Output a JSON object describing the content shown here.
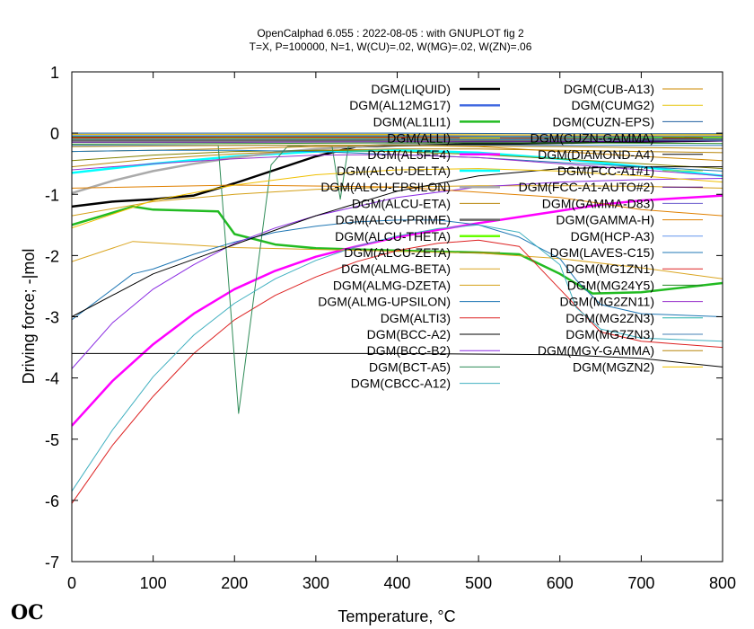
{
  "chart_data": {
    "type": "line",
    "title": "OpenCalphad   6.055 :  2022-08-05 : with GNUPLOT fig 2",
    "subtitle": "T=X,  P=100000, N=1, W(CU)=.02, W(MG)=.02, W(ZN)=.06",
    "xlabel": "Temperature, °C",
    "ylabel": "Driving force; -|mol",
    "xlim": [
      0,
      800
    ],
    "ylim": [
      -7,
      1
    ],
    "xticks": [
      "0",
      "100",
      "200",
      "300",
      "400",
      "500",
      "600",
      "700",
      "800"
    ],
    "yticks": [
      "1",
      "0",
      "-1",
      "-2",
      "-3",
      "-4",
      "-5",
      "-6",
      "-7"
    ],
    "grid": false,
    "legend_position": "top-right, two columns",
    "series": [
      {
        "name": "DGM(LIQUID)",
        "color": "#000000",
        "width": 2.5,
        "x": [
          0,
          50,
          100,
          150,
          200,
          250,
          300,
          350,
          400,
          450,
          500,
          550,
          600,
          650,
          700,
          750,
          800
        ],
        "y": [
          -1.2,
          -1.12,
          -1.08,
          -1.02,
          -0.82,
          -0.6,
          -0.38,
          -0.22,
          -0.2,
          -0.19,
          -0.18,
          -0.17,
          -0.16,
          -0.15,
          -0.14,
          -0.13,
          -0.12
        ]
      },
      {
        "name": "DGM(AL12MG17)",
        "color": "#4169e1",
        "width": 2.5,
        "x": [
          0,
          200,
          400,
          600,
          800
        ],
        "y": [
          -0.1,
          -0.09,
          -0.08,
          -0.08,
          -0.07
        ]
      },
      {
        "name": "DGM(AL1LI1)",
        "color": "#22bb22",
        "width": 2.5,
        "x": [
          0,
          75,
          100,
          180,
          200,
          250,
          300,
          400,
          500,
          550,
          600,
          640,
          700,
          800
        ],
        "y": [
          -1.5,
          -1.2,
          -1.25,
          -1.28,
          -1.65,
          -1.82,
          -1.88,
          -1.92,
          -1.95,
          -1.98,
          -2.3,
          -2.62,
          -2.6,
          -2.45
        ]
      },
      {
        "name": "DGM(ALLI)",
        "color": "#ffd700",
        "width": 1,
        "x": [
          0,
          200,
          400,
          600,
          800
        ],
        "y": [
          -0.05,
          -0.04,
          -0.03,
          -0.03,
          -0.02
        ]
      },
      {
        "name": "DGM(AL5FE4)",
        "color": "#ff00ff",
        "width": 2.5,
        "x": [
          0,
          50,
          100,
          150,
          200,
          250,
          300,
          350,
          400,
          450,
          500,
          550,
          600,
          650,
          700,
          800
        ],
        "y": [
          -4.78,
          -4.05,
          -3.45,
          -2.95,
          -2.55,
          -2.25,
          -2.02,
          -1.85,
          -1.7,
          -1.58,
          -1.47,
          -1.37,
          -1.27,
          -1.17,
          -1.1,
          -1.02
        ]
      },
      {
        "name": "DGM(ALCU-DELTA)",
        "color": "#00ffff",
        "width": 2.5,
        "x": [
          0,
          100,
          200,
          300,
          400,
          500,
          600,
          700,
          800
        ],
        "y": [
          -0.65,
          -0.5,
          -0.38,
          -0.3,
          -0.28,
          -0.32,
          -0.42,
          -0.55,
          -0.7
        ]
      },
      {
        "name": "DGM(ALCU-EPSILON)",
        "color": "#aaaaaa",
        "width": 2.5,
        "x": [
          0,
          50,
          100,
          150,
          200,
          250,
          300,
          400,
          500,
          600,
          700,
          800
        ],
        "y": [
          -0.98,
          -0.78,
          -0.62,
          -0.5,
          -0.4,
          -0.32,
          -0.26,
          -0.18,
          -0.14,
          -0.12,
          -0.1,
          -0.1
        ]
      },
      {
        "name": "DGM(ALCU-ETA)",
        "color": "#b8860b",
        "width": 1,
        "x": [
          0,
          100,
          200,
          300,
          400,
          500,
          600,
          700,
          800
        ],
        "y": [
          -0.55,
          -0.42,
          -0.34,
          -0.28,
          -0.26,
          -0.26,
          -0.28,
          -0.3,
          -0.32
        ]
      },
      {
        "name": "DGM(ALCU-PRIME)",
        "color": "#666666",
        "width": 2.5,
        "x": [
          0,
          200,
          400,
          600,
          800
        ],
        "y": [
          -0.12,
          -0.12,
          -0.11,
          -0.11,
          -0.1
        ]
      },
      {
        "name": "DGM(ALCU-THETA)",
        "color": "#66ff00",
        "width": 2.5,
        "x": [
          0,
          200,
          400,
          600,
          800
        ],
        "y": [
          -0.08,
          -0.08,
          -0.07,
          -0.07,
          -0.06
        ]
      },
      {
        "name": "DGM(ALCU-ZETA)",
        "color": "#808000",
        "width": 1,
        "x": [
          0,
          100,
          200,
          300,
          400,
          500,
          600,
          700,
          800
        ],
        "y": [
          -0.45,
          -0.36,
          -0.3,
          -0.28,
          -0.3,
          -0.35,
          -0.42,
          -0.5,
          -0.58
        ]
      },
      {
        "name": "DGM(ALMG-BETA)",
        "color": "#daa520",
        "width": 1,
        "x": [
          0,
          75,
          200,
          300,
          400,
          500,
          600,
          700,
          800
        ],
        "y": [
          -2.1,
          -1.77,
          -1.87,
          -1.9,
          -1.93,
          -1.96,
          -2.05,
          -2.2,
          -2.38
        ]
      },
      {
        "name": "DGM(ALMG-DZETA)",
        "color": "#d4a017",
        "width": 1,
        "x": [
          0,
          100,
          200,
          300,
          400,
          500,
          600,
          700,
          800
        ],
        "y": [
          -1.35,
          -1.12,
          -1.0,
          -0.92,
          -0.88,
          -0.86,
          -0.86,
          -0.87,
          -0.9
        ]
      },
      {
        "name": "DGM(ALMG-UPSILON)",
        "color": "#1f77b4",
        "width": 1,
        "x": [
          0,
          75,
          100,
          150,
          200,
          250,
          300,
          350,
          400,
          450,
          500,
          550,
          600,
          620,
          650,
          700,
          800
        ],
        "y": [
          -3.05,
          -2.3,
          -2.22,
          -1.98,
          -1.78,
          -1.62,
          -1.52,
          -1.45,
          -1.42,
          -1.42,
          -1.5,
          -1.7,
          -2.05,
          -2.4,
          -2.8,
          -2.95,
          -3.0
        ]
      },
      {
        "name": "DGM(ALTI3)",
        "color": "#dd2222",
        "width": 1,
        "x": [
          0,
          50,
          100,
          150,
          200,
          250,
          300,
          350,
          400,
          450,
          500,
          550,
          600,
          650,
          700,
          750,
          800
        ],
        "y": [
          -6.05,
          -5.1,
          -4.3,
          -3.6,
          -3.05,
          -2.65,
          -2.35,
          -2.1,
          -1.92,
          -1.8,
          -1.75,
          -1.85,
          -2.55,
          -3.25,
          -3.4,
          -3.45,
          -3.5
        ]
      },
      {
        "name": "DGM(BCC-A2)",
        "color": "#000000",
        "width": 1,
        "x": [
          0,
          200,
          400,
          600,
          700,
          800
        ],
        "y": [
          -3.6,
          -3.6,
          -3.6,
          -3.62,
          -3.68,
          -3.82
        ]
      },
      {
        "name": "DGM(BCC-B2)",
        "color": "#8a2be2",
        "width": 1,
        "x": [
          0,
          50,
          100,
          150,
          200,
          250,
          300,
          400,
          500,
          600,
          700,
          800
        ],
        "y": [
          -3.85,
          -3.1,
          -2.55,
          -2.15,
          -1.8,
          -1.55,
          -1.35,
          -1.05,
          -0.88,
          -0.8,
          -0.76,
          -0.74
        ]
      },
      {
        "name": "DGM(BCT-A5)",
        "color": "#2e8b57",
        "width": 1,
        "x": [
          0,
          180,
          205,
          245,
          265,
          300,
          320,
          330,
          340,
          360,
          400,
          500,
          600,
          700,
          800
        ],
        "y": [
          -0.2,
          -0.2,
          -4.58,
          -0.52,
          -0.22,
          -0.2,
          -0.22,
          -1.08,
          -0.22,
          -0.2,
          -0.2,
          -0.2,
          -0.2,
          -0.2,
          -0.2
        ]
      },
      {
        "name": "DGM(CBCC-A12)",
        "color": "#40b0c0",
        "width": 1,
        "x": [
          0,
          50,
          100,
          150,
          200,
          250,
          300,
          350,
          400,
          450,
          500,
          550,
          600,
          620,
          650,
          700,
          800
        ],
        "y": [
          -5.85,
          -4.85,
          -3.98,
          -3.3,
          -2.78,
          -2.38,
          -2.08,
          -1.85,
          -1.68,
          -1.56,
          -1.5,
          -1.62,
          -2.15,
          -2.85,
          -3.2,
          -3.35,
          -3.4
        ]
      },
      {
        "name": "DGM(CUB-A13)",
        "color": "#cc8800",
        "width": 1,
        "x": [
          0,
          100,
          200,
          300,
          400,
          500,
          600,
          700,
          800
        ],
        "y": [
          -0.3,
          -0.28,
          -0.25,
          -0.22,
          -0.2,
          -0.22,
          -0.3,
          -0.38,
          -0.45
        ]
      },
      {
        "name": "DGM(CUMG2)",
        "color": "#e6c200",
        "width": 1,
        "x": [
          0,
          200,
          400,
          600,
          800
        ],
        "y": [
          -0.02,
          -0.02,
          -0.02,
          -0.03,
          -0.03
        ]
      },
      {
        "name": "DGM(CUZN-EPS)",
        "color": "#1f5f9f",
        "width": 1,
        "x": [
          0,
          200,
          400,
          600,
          800
        ],
        "y": [
          0.0,
          0.0,
          0.0,
          -0.01,
          -0.01
        ]
      },
      {
        "name": "DGM(CUZN-GAMMA)",
        "color": "#8b0000",
        "width": 1,
        "x": [
          0,
          200,
          400,
          600,
          800
        ],
        "y": [
          -0.06,
          -0.06,
          -0.06,
          -0.07,
          -0.08
        ]
      },
      {
        "name": "DGM(DIAMOND-A4)",
        "color": "#000000",
        "width": 1,
        "x": [
          0,
          100,
          200,
          300,
          400,
          500,
          600,
          700,
          800
        ],
        "y": [
          -3.0,
          -2.3,
          -1.82,
          -1.35,
          -0.95,
          -0.7,
          -0.58,
          -0.55,
          -0.55
        ]
      },
      {
        "name": "DGM(FCC-A1#1)",
        "color": "#9acd32",
        "width": 1,
        "x": [
          0,
          100,
          200,
          300,
          400,
          500,
          600,
          700,
          800
        ],
        "y": [
          -0.1,
          -0.09,
          -0.09,
          -0.08,
          -0.08,
          -0.08,
          -0.08,
          -0.08,
          -0.08
        ]
      },
      {
        "name": "DGM(FCC-A1-AUTO#2)",
        "color": "#4b0082",
        "width": 1,
        "x": [
          0,
          200,
          400,
          600,
          800
        ],
        "y": [
          -0.15,
          -0.15,
          -0.14,
          -0.14,
          -0.13
        ]
      },
      {
        "name": "DGM(GAMMA-D83)",
        "color": "#6a5acd",
        "width": 1,
        "x": [
          0,
          200,
          400,
          600,
          800
        ],
        "y": [
          -0.04,
          -0.04,
          -0.04,
          -0.05,
          -0.05
        ]
      },
      {
        "name": "DGM(GAMMA-H)",
        "color": "#e08000",
        "width": 1,
        "x": [
          0,
          200,
          400,
          600,
          700,
          800
        ],
        "y": [
          -0.9,
          -0.85,
          -0.88,
          -1.05,
          -1.25,
          -1.35
        ]
      },
      {
        "name": "DGM(HCP-A3)",
        "color": "#6495ed",
        "width": 1,
        "x": [
          0,
          200,
          400,
          600,
          800
        ],
        "y": [
          -0.2,
          -0.2,
          -0.2,
          -0.2,
          -0.2
        ]
      },
      {
        "name": "DGM(LAVES-C15)",
        "color": "#1f77b4",
        "width": 1,
        "x": [
          0,
          100,
          200,
          300,
          400,
          500,
          600,
          700,
          800
        ],
        "y": [
          -0.3,
          -0.28,
          -0.28,
          -0.3,
          -0.35,
          -0.4,
          -0.48,
          -0.55,
          -0.62
        ]
      },
      {
        "name": "DGM(MG1ZN1)",
        "color": "#dd2222",
        "width": 1,
        "x": [
          0,
          200,
          400,
          600,
          800
        ],
        "y": [
          -0.08,
          -0.07,
          -0.07,
          -0.08,
          -0.09
        ]
      },
      {
        "name": "DGM(MG24Y5)",
        "color": "#228b22",
        "width": 1,
        "x": [
          0,
          200,
          400,
          600,
          800
        ],
        "y": [
          -0.18,
          -0.17,
          -0.16,
          -0.16,
          -0.17
        ]
      },
      {
        "name": "DGM(MG2ZN11)",
        "color": "#9932cc",
        "width": 1,
        "x": [
          0,
          100,
          200,
          300,
          400,
          500,
          600,
          700,
          800
        ],
        "y": [
          -0.6,
          -0.5,
          -0.42,
          -0.36,
          -0.35,
          -0.4,
          -0.5,
          -0.6,
          -0.7
        ]
      },
      {
        "name": "DGM(MG2ZN3)",
        "color": "#20b2aa",
        "width": 1,
        "x": [
          0,
          100,
          200,
          300,
          400,
          500,
          600,
          700,
          800
        ],
        "y": [
          -0.05,
          -0.05,
          -0.05,
          -0.05,
          -0.05,
          -0.06,
          -0.07,
          -0.08,
          -0.09
        ]
      },
      {
        "name": "DGM(MG7ZN3)",
        "color": "#4682b4",
        "width": 1,
        "x": [
          0,
          200,
          400,
          600,
          800
        ],
        "y": [
          -0.1,
          -0.1,
          -0.1,
          -0.11,
          -0.12
        ]
      },
      {
        "name": "DGM(MGY-GAMMA)",
        "color": "#b8860b",
        "width": 1,
        "x": [
          0,
          200,
          400,
          600,
          800
        ],
        "y": [
          -0.22,
          -0.2,
          -0.2,
          -0.22,
          -0.25
        ]
      },
      {
        "name": "DGM(MGZN2)",
        "color": "#f0c000",
        "width": 1,
        "x": [
          0,
          100,
          200,
          300,
          400,
          500,
          600,
          700,
          800
        ],
        "y": [
          -1.55,
          -1.1,
          -0.85,
          -0.68,
          -0.6,
          -0.58,
          -0.62,
          -0.7,
          -0.8
        ]
      }
    ]
  },
  "logo": {
    "text": "OC"
  }
}
